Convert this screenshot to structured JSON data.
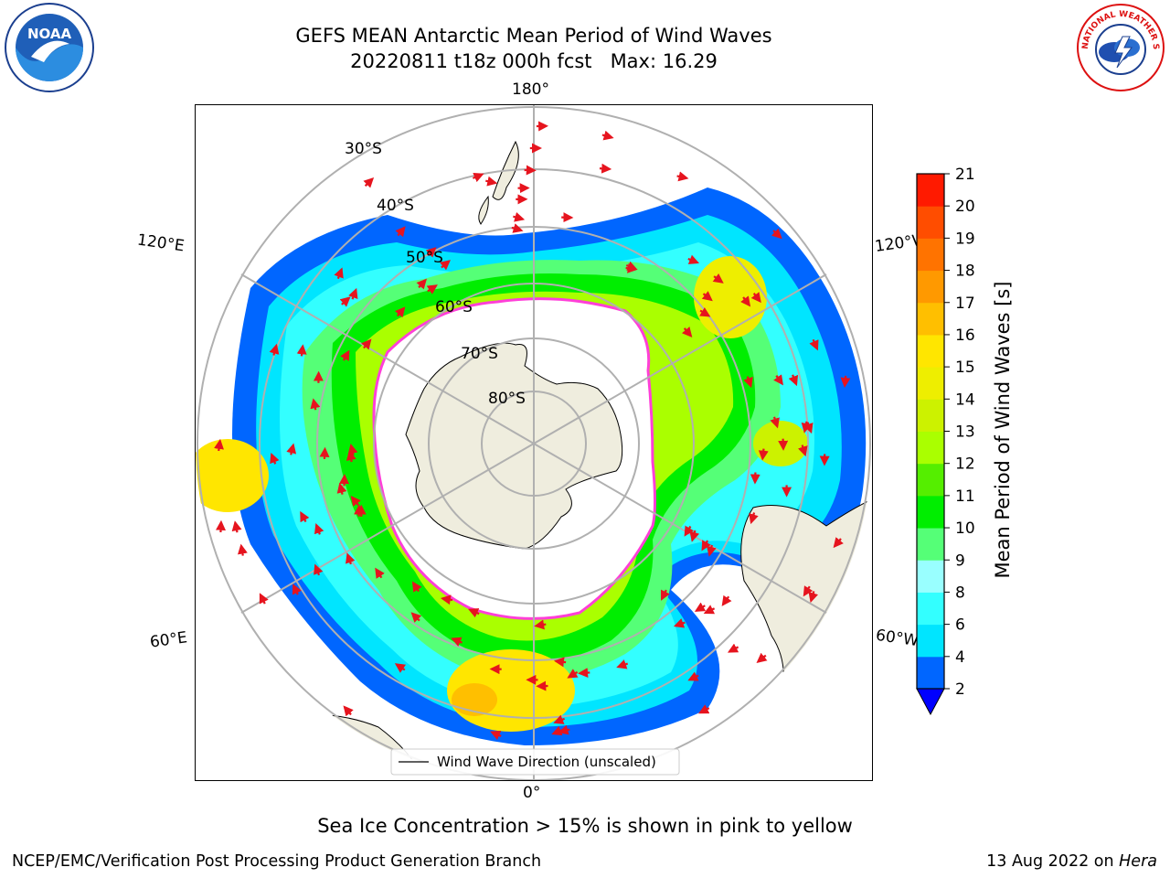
{
  "title": {
    "line1": "GEFS MEAN Antarctic Mean Period of Wind Waves",
    "line2": "20220811 t18z 000h fcst   Max: 16.29"
  },
  "logos": {
    "noaa": {
      "text": "NOAA",
      "icon": "noaa-logo-icon"
    },
    "nws": {
      "text": "NATIONAL WEATHER SERVICE",
      "icon": "nws-logo-icon"
    }
  },
  "map": {
    "projection": "south-polar-stereographic",
    "longitude_labels": {
      "top": "180°",
      "bottom": "0°",
      "upper_left": "120°E",
      "upper_right": "120°W",
      "lower_left": "60°E",
      "lower_right": "60°W"
    },
    "latitude_labels": [
      "30°S",
      "40°S",
      "50°S",
      "60°S",
      "70°S",
      "80°S"
    ],
    "legend": "Wind Wave Direction (unscaled)",
    "colors": {
      "land": "#efedde",
      "sea_ice_edge": "#ff3fd8",
      "wave_arrow": "#e6141e",
      "grid": "#b0b0b0"
    }
  },
  "colorbar": {
    "label": "Mean Period of Wind Waves [s]",
    "ticks": [
      "2",
      "4",
      "6",
      "8",
      "9",
      "10",
      "11",
      "12",
      "13",
      "14",
      "15",
      "16",
      "17",
      "18",
      "19",
      "20",
      "21"
    ],
    "colors": [
      "#0066ff",
      "#00e5ff",
      "#33ffff",
      "#99ffff",
      "#55ff77",
      "#00ee00",
      "#55ee00",
      "#aaff00",
      "#ccf200",
      "#eeee00",
      "#ffe600",
      "#ffbf00",
      "#ff9900",
      "#ff7300",
      "#ff4d00",
      "#ff1a00"
    ],
    "under_color": "#0000ff"
  },
  "subtitle": "Sea Ice Concentration > 15% is shown in pink to yellow",
  "footer": {
    "left": "NCEP/EMC/Verification Post Processing Product Generation Branch",
    "right_date": "13 Aug 2022 on ",
    "right_host": "Hera"
  }
}
